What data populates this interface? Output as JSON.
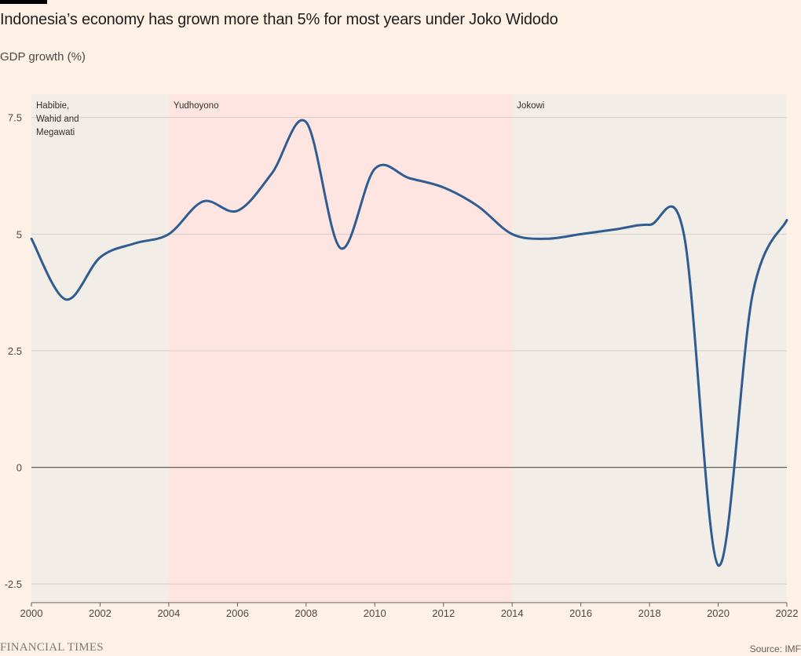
{
  "header": {
    "title": "Indonesia’s economy has grown more than 5% for most years under Joko Widodo",
    "subtitle": "GDP growth (%)"
  },
  "footer": {
    "logo_text": "FINANCIAL TIMES",
    "source": "Source: IMF"
  },
  "colors": {
    "background": "#FFF1E5",
    "line": "#2F5C91",
    "band_neutral": "#F2EDE6",
    "band_highlight": "#FEE5E1",
    "gridline": "#D6CDC6",
    "zero_line": "#66605C"
  },
  "chart_data": {
    "type": "line",
    "title": "Indonesia’s economy has grown more than 5% for most years under Joko Widodo",
    "ylabel": "GDP growth (%)",
    "xlabel": "",
    "xlim": [
      2000,
      2022
    ],
    "ylim": [
      -2.9,
      8.0
    ],
    "x_ticks": [
      2000,
      2002,
      2004,
      2006,
      2008,
      2010,
      2012,
      2014,
      2016,
      2018,
      2020,
      2022
    ],
    "y_ticks": [
      7.5,
      5,
      2.5,
      0,
      -2.5
    ],
    "y_tick_labels": [
      "7.5",
      "5",
      "2.5",
      "0",
      "-2.5"
    ],
    "grid": true,
    "legend": "none",
    "series": [
      {
        "x": [
          2000,
          2001,
          2002,
          2003,
          2004,
          2005,
          2006,
          2007,
          2008,
          2009,
          2010,
          2011,
          2012,
          2013,
          2014,
          2015,
          2016,
          2017,
          2018,
          2019,
          2020,
          2021,
          2022
        ],
        "values": [
          4.9,
          3.6,
          4.5,
          4.8,
          5.0,
          5.7,
          5.5,
          6.3,
          7.4,
          4.7,
          6.4,
          6.2,
          6.0,
          5.6,
          5.0,
          4.9,
          5.0,
          5.1,
          5.2,
          5.0,
          -2.1,
          3.7,
          5.3
        ]
      }
    ],
    "annotations": [
      {
        "label": "Habibie,\nWahid and\nMegawati",
        "from": 2000,
        "to": 2004,
        "style": "neutral"
      },
      {
        "label": "Yudhoyono",
        "from": 2004,
        "to": 2014,
        "style": "highlight"
      },
      {
        "label": "Jokowi",
        "from": 2014,
        "to": 2022,
        "style": "neutral"
      }
    ]
  }
}
